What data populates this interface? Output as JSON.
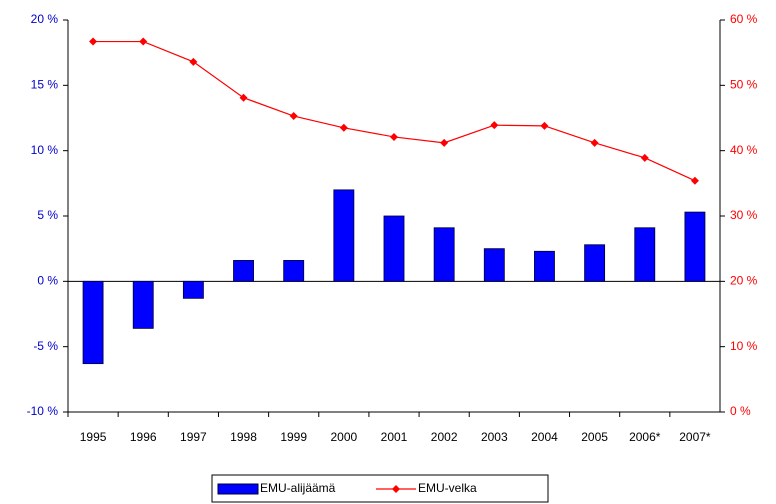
{
  "chart_data": {
    "type": "bar-line",
    "categories": [
      "1995",
      "1996",
      "1997",
      "1998",
      "1999",
      "2000",
      "2001",
      "2002",
      "2003",
      "2004",
      "2005",
      "2006*",
      "2007*"
    ],
    "series": [
      {
        "name": "EMU-alijäämä",
        "type": "bar",
        "color": "#0000ff",
        "values": [
          -6.3,
          -3.6,
          -1.3,
          1.6,
          1.6,
          7.0,
          5.0,
          4.1,
          2.5,
          2.3,
          2.8,
          4.1,
          5.3
        ]
      },
      {
        "name": "EMU-velka",
        "type": "line",
        "axis": "y2",
        "color": "#ff0000",
        "values": [
          56.7,
          56.7,
          53.6,
          48.1,
          45.3,
          43.5,
          42.1,
          41.2,
          43.9,
          43.8,
          41.2,
          38.9,
          35.4
        ]
      }
    ],
    "ylim": [
      -10,
      20
    ],
    "yticks": [
      {
        "value": -10,
        "label": "-10 %"
      },
      {
        "value": -5,
        "label": "-5 %"
      },
      {
        "value": 0,
        "label": "0 %"
      },
      {
        "value": 5,
        "label": "5 %"
      },
      {
        "value": 10,
        "label": "10 %"
      },
      {
        "value": 15,
        "label": "15 %"
      },
      {
        "value": 20,
        "label": "20 %"
      }
    ],
    "y2lim": [
      0,
      60
    ],
    "y2ticks": [
      {
        "value": 0,
        "label": "0 %"
      },
      {
        "value": 10,
        "label": "10 %"
      },
      {
        "value": 20,
        "label": "20 %"
      },
      {
        "value": 30,
        "label": "30 %"
      },
      {
        "value": 40,
        "label": "40 %"
      },
      {
        "value": 50,
        "label": "50 %"
      },
      {
        "value": 60,
        "label": "60 %"
      }
    ],
    "legend": "bottom"
  }
}
